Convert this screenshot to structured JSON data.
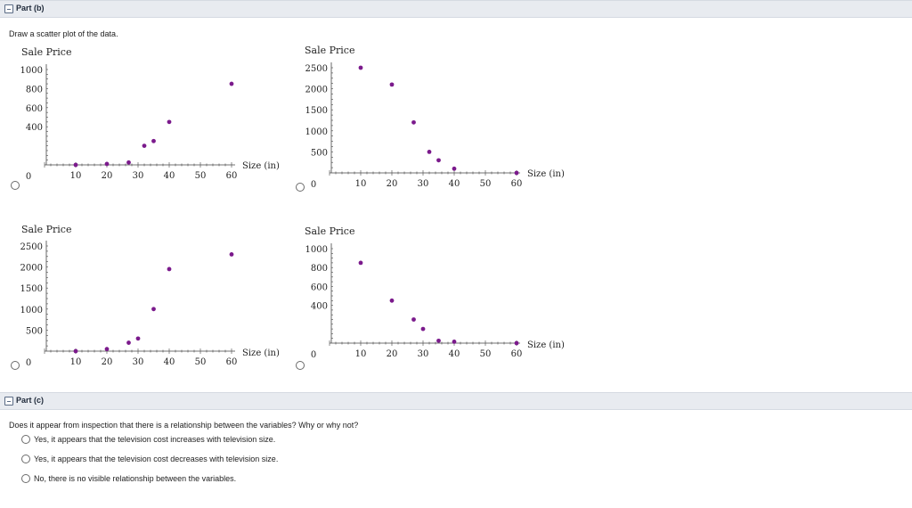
{
  "part_b": {
    "header": "Part (b)",
    "prompt": "Draw a scatter plot of the data."
  },
  "part_c": {
    "header": "Part (c)",
    "question": "Does it appear from inspection that there is a relationship between the variables? Why or why not?",
    "options": [
      "Yes, it appears that the television cost increases with television size.",
      "Yes, it appears that the television cost decreases with television size.",
      "No, there is no visible relationship between the variables."
    ]
  },
  "colors": {
    "point": "#7b1a8c",
    "axis": "#444444",
    "header_bg": "#e8ebf0"
  },
  "chart_data": [
    {
      "type": "scatter",
      "xlabel": "Size (in)",
      "ylabel": "Sale Price",
      "xlim": [
        0,
        60
      ],
      "ylim": [
        0,
        1000
      ],
      "xticks": [
        "0",
        "10",
        "20",
        "30",
        "40",
        "50",
        "60"
      ],
      "yticks": [
        "400",
        "600",
        "800",
        "1000"
      ],
      "ytick_values": [
        400,
        600,
        800,
        1000
      ],
      "x": [
        10,
        20,
        27,
        32,
        35,
        40,
        60
      ],
      "y": [
        0,
        10,
        25,
        200,
        250,
        450,
        850
      ]
    },
    {
      "type": "scatter",
      "xlabel": "Size (in)",
      "ylabel": "Sale Price",
      "xlim": [
        0,
        60
      ],
      "ylim": [
        0,
        2500
      ],
      "xticks": [
        "0",
        "10",
        "20",
        "30",
        "40",
        "50",
        "60"
      ],
      "yticks": [
        "500",
        "1000",
        "1500",
        "2000",
        "2500"
      ],
      "ytick_values": [
        500,
        1000,
        1500,
        2000,
        2500
      ],
      "x": [
        10,
        20,
        27,
        32,
        35,
        40,
        60
      ],
      "y": [
        2500,
        2100,
        1200,
        500,
        300,
        100,
        0
      ]
    },
    {
      "type": "scatter",
      "xlabel": "Size (in)",
      "ylabel": "Sale Price",
      "xlim": [
        0,
        60
      ],
      "ylim": [
        0,
        2500
      ],
      "xticks": [
        "0",
        "10",
        "20",
        "30",
        "40",
        "50",
        "60"
      ],
      "yticks": [
        "500",
        "1000",
        "1500",
        "2000",
        "2500"
      ],
      "ytick_values": [
        500,
        1000,
        1500,
        2000,
        2500
      ],
      "x": [
        10,
        20,
        27,
        30,
        35,
        40,
        60
      ],
      "y": [
        0,
        50,
        200,
        300,
        1000,
        1950,
        2300
      ]
    },
    {
      "type": "scatter",
      "xlabel": "Size (in)",
      "ylabel": "Sale Price",
      "xlim": [
        0,
        60
      ],
      "ylim": [
        0,
        1000
      ],
      "xticks": [
        "0",
        "10",
        "20",
        "30",
        "40",
        "50",
        "60"
      ],
      "yticks": [
        "400",
        "600",
        "800",
        "1000"
      ],
      "ytick_values": [
        400,
        600,
        800,
        1000
      ],
      "x": [
        10,
        20,
        27,
        30,
        35,
        40,
        60
      ],
      "y": [
        850,
        450,
        250,
        150,
        25,
        15,
        0
      ]
    }
  ]
}
